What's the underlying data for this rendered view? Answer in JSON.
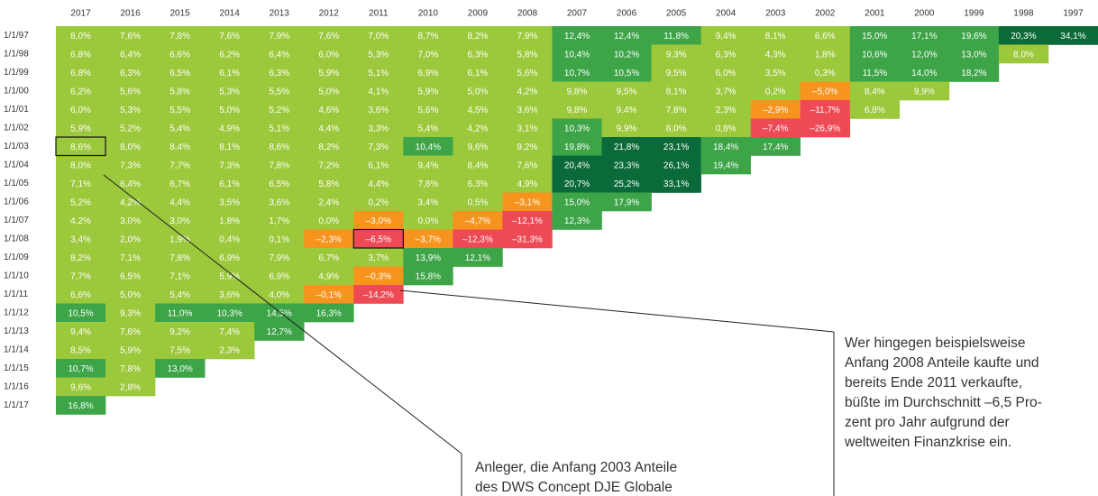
{
  "table": {
    "columns": [
      "2017",
      "2016",
      "2015",
      "2014",
      "2013",
      "2012",
      "2011",
      "2010",
      "2009",
      "2008",
      "2007",
      "2006",
      "2005",
      "2004",
      "2003",
      "2002",
      "2001",
      "2000",
      "1999",
      "1998",
      "1997"
    ],
    "rows": [
      {
        "label": "1/1/97",
        "cells": [
          "8,0%",
          "7,6%",
          "7,8%",
          "7,6%",
          "7,9%",
          "7,6%",
          "7,0%",
          "8,7%",
          "8,2%",
          "7,9%",
          "12,4%",
          "12,4%",
          "11,8%",
          "9,4%",
          "8,1%",
          "6,6%",
          "15,0%",
          "17,1%",
          "19,6%",
          "20,3%",
          "34,1%"
        ]
      },
      {
        "label": "1/1/98",
        "cells": [
          "6,8%",
          "6,4%",
          "6,6%",
          "6,2%",
          "6,4%",
          "6,0%",
          "5,3%",
          "7,0%",
          "6,3%",
          "5,8%",
          "10,4%",
          "10,2%",
          "9,3%",
          "6,3%",
          "4,3%",
          "1,8%",
          "10,6%",
          "12,0%",
          "13,0%",
          "8,0%"
        ]
      },
      {
        "label": "1/1/99",
        "cells": [
          "6,8%",
          "6,3%",
          "6,5%",
          "6,1%",
          "6,3%",
          "5,9%",
          "5,1%",
          "6,9%",
          "6,1%",
          "5,6%",
          "10,7%",
          "10,5%",
          "9,5%",
          "6,0%",
          "3,5%",
          "0,3%",
          "11,5%",
          "14,0%",
          "18,2%"
        ]
      },
      {
        "label": "1/1/00",
        "cells": [
          "6,2%",
          "5,6%",
          "5,8%",
          "5,3%",
          "5,5%",
          "5,0%",
          "4,1%",
          "5,9%",
          "5,0%",
          "4,2%",
          "9,8%",
          "9,5%",
          "8,1%",
          "3,7%",
          "0,2%",
          "–5,0%",
          "8,4%",
          "9,9%"
        ]
      },
      {
        "label": "1/1/01",
        "cells": [
          "6,0%",
          "5,3%",
          "5,5%",
          "5,0%",
          "5,2%",
          "4,6%",
          "3,6%",
          "5,6%",
          "4,5%",
          "3,6%",
          "9,8%",
          "9,4%",
          "7,8%",
          "2,3%",
          "–2,9%",
          "–11,7%",
          "6,8%"
        ]
      },
      {
        "label": "1/1/02",
        "cells": [
          "5,9%",
          "5,2%",
          "5,4%",
          "4,9%",
          "5,1%",
          "4,4%",
          "3,3%",
          "5,4%",
          "4,2%",
          "3,1%",
          "10,3%",
          "9,9%",
          "8,0%",
          "0,8%",
          "–7,4%",
          "–26,9%"
        ]
      },
      {
        "label": "1/1/03",
        "cells": [
          "8,6%",
          "8,0%",
          "8,4%",
          "8,1%",
          "8,6%",
          "8,2%",
          "7,3%",
          "10,4%",
          "9,6%",
          "9,2%",
          "19,8%",
          "21,8%",
          "23,1%",
          "18,4%",
          "17,4%"
        ]
      },
      {
        "label": "1/1/04",
        "cells": [
          "8,0%",
          "7,3%",
          "7,7%",
          "7,3%",
          "7,8%",
          "7,2%",
          "6,1%",
          "9,4%",
          "8,4%",
          "7,6%",
          "20,4%",
          "23,3%",
          "26,1%",
          "19,4%"
        ]
      },
      {
        "label": "1/1/05",
        "cells": [
          "7,1%",
          "6,4%",
          "6,7%",
          "6,1%",
          "6,5%",
          "5,8%",
          "4,4%",
          "7,8%",
          "6,3%",
          "4,9%",
          "20,7%",
          "25,2%",
          "33,1%"
        ]
      },
      {
        "label": "1/1/06",
        "cells": [
          "5,2%",
          "4,2%",
          "4,4%",
          "3,5%",
          "3,6%",
          "2,4%",
          "0,2%",
          "3,4%",
          "0,5%",
          "–3,1%",
          "15,0%",
          "17,9%"
        ]
      },
      {
        "label": "1/1/07",
        "cells": [
          "4,2%",
          "3,0%",
          "3,0%",
          "1,8%",
          "1,7%",
          "0,0%",
          "–3,0%",
          "0,0%",
          "–4,7%",
          "–12,1%",
          "12,3%"
        ]
      },
      {
        "label": "1/1/08",
        "cells": [
          "3,4%",
          "2,0%",
          "1,9%",
          "0,4%",
          "0,1%",
          "–2,3%",
          "–6,5%",
          "–3,7%",
          "–12,3%",
          "–31,3%"
        ]
      },
      {
        "label": "1/1/09",
        "cells": [
          "8,2%",
          "7,1%",
          "7,8%",
          "6,9%",
          "7,9%",
          "6,7%",
          "3,7%",
          "13,9%",
          "12,1%"
        ]
      },
      {
        "label": "1/1/10",
        "cells": [
          "7,7%",
          "6,5%",
          "7,1%",
          "5,9%",
          "6,9%",
          "4,9%",
          "–0,3%",
          "15,8%"
        ]
      },
      {
        "label": "1/1/11",
        "cells": [
          "6,6%",
          "5,0%",
          "5,4%",
          "3,6%",
          "4,0%",
          "–0,1%",
          "–14,2%"
        ]
      },
      {
        "label": "1/1/12",
        "cells": [
          "10,5%",
          "9,3%",
          "11,0%",
          "10,3%",
          "14,5%",
          "16,3%"
        ]
      },
      {
        "label": "1/1/13",
        "cells": [
          "9,4%",
          "7,6%",
          "9,2%",
          "7,4%",
          "12,7%"
        ]
      },
      {
        "label": "1/1/14",
        "cells": [
          "8,5%",
          "5,9%",
          "7,5%",
          "2,3%"
        ]
      },
      {
        "label": "1/1/15",
        "cells": [
          "10,7%",
          "7,8%",
          "13,0%"
        ]
      },
      {
        "label": "1/1/16",
        "cells": [
          "9,6%",
          "2,8%"
        ]
      },
      {
        "label": "1/1/17",
        "cells": [
          "16,8%"
        ]
      }
    ]
  },
  "annotations": [
    {
      "lines": [
        "Wer hingegen beispielsweise",
        "Anfang 2008 Anteile kaufte und",
        "bereits Ende 2011 verkaufte,",
        "büßte im Durchschnitt –6,5 Pro-",
        "zent pro Jahr aufgrund der",
        "weltweiten Finanzkrise ein."
      ]
    },
    {
      "lines": [
        "Anleger, die Anfang 2003 Anteile",
        "des DWS Concept DJE Globale"
      ]
    }
  ]
}
